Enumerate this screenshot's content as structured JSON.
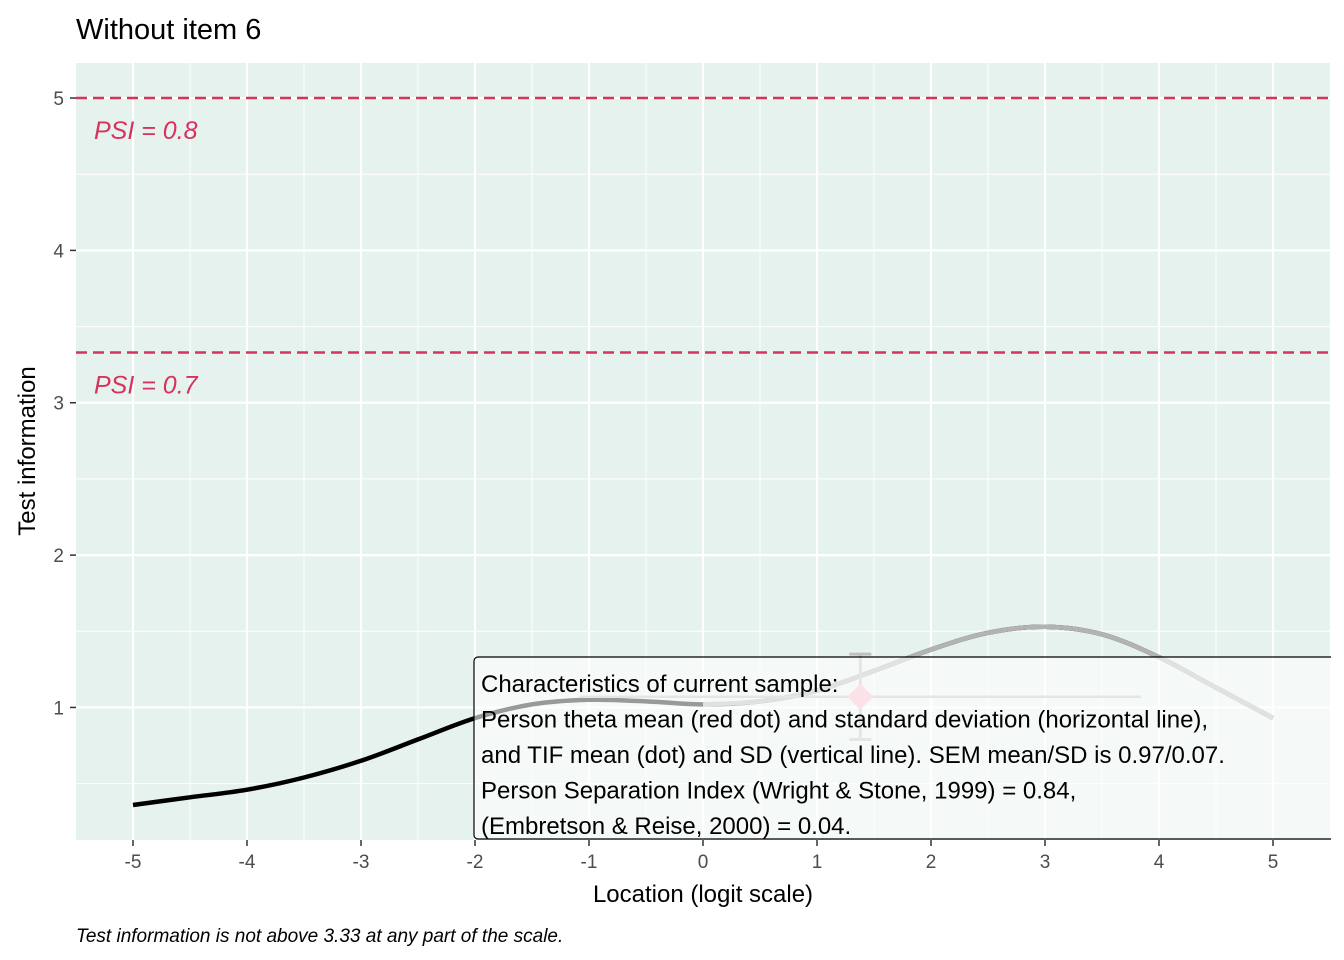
{
  "chart_data": {
    "type": "line",
    "title": "Without item 6",
    "xlabel": "Location (logit scale)",
    "ylabel": "Test information",
    "xlim": [
      -5.5,
      5.5
    ],
    "ylim": [
      0.13,
      5.23
    ],
    "xticks": [
      "-5",
      "-4",
      "-3",
      "-2",
      "-1",
      "0",
      "1",
      "2",
      "3",
      "4",
      "5"
    ],
    "xtick_values": [
      -5,
      -4,
      -3,
      -2,
      -1,
      0,
      1,
      2,
      3,
      4,
      5
    ],
    "yticks": [
      "1",
      "2",
      "3",
      "4",
      "5"
    ],
    "ytick_values": [
      1,
      2,
      3,
      4,
      5
    ],
    "grid": true,
    "background": "#e6f2ed",
    "series": [
      {
        "color": "#000000",
        "x": [
          -5.0,
          -4.5,
          -4.0,
          -3.5,
          -3.0,
          -2.5,
          -2.0,
          -1.5,
          -1.0,
          -0.5,
          0.0,
          0.5,
          1.0,
          1.5,
          2.0,
          2.5,
          3.0,
          3.5,
          4.0,
          4.5,
          5.0
        ],
        "y": [
          0.36,
          0.41,
          0.46,
          0.54,
          0.65,
          0.79,
          0.93,
          1.02,
          1.05,
          1.04,
          1.02,
          1.04,
          1.11,
          1.24,
          1.38,
          1.49,
          1.53,
          1.48,
          1.33,
          1.13,
          0.93
        ]
      }
    ],
    "highlight_segment": {
      "from_x": 0.0,
      "to_x": 5.0,
      "color": "#b3b3b3"
    },
    "reference_lines": [
      {
        "y": 5.0,
        "label": "PSI = 0.8",
        "color": "#d6325e"
      },
      {
        "y": 3.33,
        "label": "PSI = 0.7",
        "color": "#d6325e"
      }
    ],
    "sample_point": {
      "x": 1.38,
      "y": 1.07,
      "x_min": -1.08,
      "x_max": 3.84,
      "y_min": 0.79,
      "y_max": 1.35,
      "point_color": "#f4b6c8",
      "bar_color": "#bfbfbf"
    },
    "annotation_box": {
      "lines": [
        "Characteristics of current sample:",
        "Person theta mean (red dot) and standard deviation (horizontal line),",
        "and TIF mean (dot) and SD (vertical line). SEM mean/SD is 0.97/0.07.",
        "Person Separation Index (Wright & Stone, 1999) = 0.84,",
        "(Embretson & Reise, 2000) = 0.04."
      ]
    },
    "caption": "Test information is not above 3.33 at any part of the scale."
  }
}
